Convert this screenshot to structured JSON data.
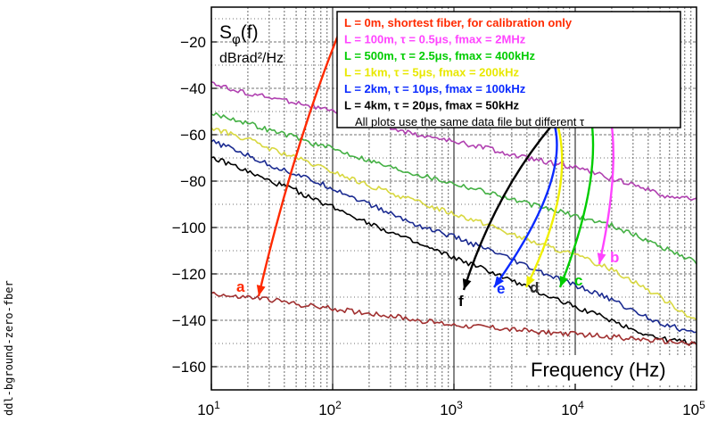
{
  "side_label": "ddl-bground-zero-fber",
  "chart_data": {
    "type": "line",
    "ylabel_main": "S",
    "ylabel_sub": "φ",
    "ylabel_tail": "(f)",
    "ylabel_unit": "dBrad²/Hz",
    "xlabel": "Frequency (Hz)",
    "x_log": true,
    "xlim": [
      10,
      100000
    ],
    "ylim": [
      -170,
      -5
    ],
    "x_ticks": [
      {
        "value": 10,
        "base": "10",
        "exp": "1"
      },
      {
        "value": 100,
        "base": "10",
        "exp": "2"
      },
      {
        "value": 1000,
        "base": "10",
        "exp": "3"
      },
      {
        "value": 10000,
        "base": "10",
        "exp": "4"
      },
      {
        "value": 100000,
        "base": "10",
        "exp": "5"
      }
    ],
    "y_ticks": [
      {
        "value": -20,
        "label": "−20"
      },
      {
        "value": -40,
        "label": "−40"
      },
      {
        "value": -60,
        "label": "−60"
      },
      {
        "value": -80,
        "label": "−80"
      },
      {
        "value": -100,
        "label": "−100"
      },
      {
        "value": -120,
        "label": "−120"
      },
      {
        "value": -140,
        "label": "−140"
      },
      {
        "value": -160,
        "label": "−160"
      }
    ],
    "grid": true,
    "legend": [
      {
        "id": "a",
        "color": "#ff2a00",
        "text": "L = 0m, shortest fiber, for calibration only"
      },
      {
        "id": "b",
        "color": "#ff44ff",
        "text": "L = 100m, τ = 0.5μs, fmax = 2MHz"
      },
      {
        "id": "c",
        "color": "#00cc00",
        "text": "L = 500m, τ = 2.5μs, fmax = 400kHz"
      },
      {
        "id": "d",
        "color": "#e8e800",
        "text": "L = 1km, τ = 5μs, fmax = 200kHz"
      },
      {
        "id": "e",
        "color": "#0a2aff",
        "text": "L = 2km, τ = 10μs, fmax = 100kHz"
      },
      {
        "id": "f",
        "color": "#000000",
        "text": "L = 4km, τ = 20μs, fmax = 50kHz"
      }
    ],
    "legend_note": "All plots use the same data file but different τ",
    "curve_labels": [
      {
        "id": "a",
        "text": "a",
        "color": "#ff2a00"
      },
      {
        "id": "b",
        "text": "b",
        "color": "#ff44ff"
      },
      {
        "id": "c",
        "text": "c",
        "color": "#00cc00"
      },
      {
        "id": "d",
        "text": "d",
        "color": "#333333"
      },
      {
        "id": "e",
        "text": "e",
        "color": "#0a2aff"
      },
      {
        "id": "f",
        "text": "f",
        "color": "#000000"
      }
    ],
    "series": [
      {
        "id": "b",
        "color": "#b040b0",
        "points": [
          [
            10,
            -37
          ],
          [
            15,
            -41
          ],
          [
            20,
            -42
          ],
          [
            30,
            -44
          ],
          [
            50,
            -46
          ],
          [
            70,
            -48
          ],
          [
            100,
            -50
          ],
          [
            200,
            -54
          ],
          [
            300,
            -57
          ],
          [
            500,
            -60
          ],
          [
            1000,
            -63
          ],
          [
            2000,
            -66
          ],
          [
            3000,
            -69
          ],
          [
            5000,
            -71
          ],
          [
            10000,
            -74
          ],
          [
            20000,
            -79
          ],
          [
            30000,
            -81
          ],
          [
            50000,
            -86
          ],
          [
            100000,
            -88
          ]
        ]
      },
      {
        "id": "c",
        "color": "#44b044",
        "points": [
          [
            10,
            -51
          ],
          [
            15,
            -53
          ],
          [
            20,
            -55
          ],
          [
            30,
            -58
          ],
          [
            50,
            -61
          ],
          [
            70,
            -64
          ],
          [
            100,
            -66
          ],
          [
            200,
            -71
          ],
          [
            300,
            -74
          ],
          [
            500,
            -77
          ],
          [
            1000,
            -81
          ],
          [
            2000,
            -85
          ],
          [
            3000,
            -88
          ],
          [
            5000,
            -91
          ],
          [
            10000,
            -95
          ],
          [
            20000,
            -99
          ],
          [
            30000,
            -103
          ],
          [
            50000,
            -108
          ],
          [
            100000,
            -115
          ]
        ]
      },
      {
        "id": "d",
        "color": "#d8d840",
        "points": [
          [
            10,
            -57
          ],
          [
            15,
            -60
          ],
          [
            20,
            -62
          ],
          [
            30,
            -66
          ],
          [
            50,
            -70
          ],
          [
            70,
            -73
          ],
          [
            100,
            -76
          ],
          [
            200,
            -82
          ],
          [
            300,
            -85
          ],
          [
            500,
            -89
          ],
          [
            1000,
            -94
          ],
          [
            2000,
            -99
          ],
          [
            3000,
            -103
          ],
          [
            5000,
            -107
          ],
          [
            10000,
            -112
          ],
          [
            20000,
            -118
          ],
          [
            30000,
            -123
          ],
          [
            50000,
            -130
          ],
          [
            100000,
            -140
          ]
        ]
      },
      {
        "id": "e",
        "color": "#1a2a90",
        "points": [
          [
            10,
            -63
          ],
          [
            15,
            -66
          ],
          [
            20,
            -69
          ],
          [
            30,
            -73
          ],
          [
            50,
            -77
          ],
          [
            70,
            -80
          ],
          [
            100,
            -83
          ],
          [
            200,
            -90
          ],
          [
            300,
            -94
          ],
          [
            500,
            -99
          ],
          [
            1000,
            -104
          ],
          [
            2000,
            -110
          ],
          [
            3000,
            -114
          ],
          [
            5000,
            -119
          ],
          [
            10000,
            -125
          ],
          [
            20000,
            -131
          ],
          [
            30000,
            -136
          ],
          [
            50000,
            -141
          ],
          [
            100000,
            -146
          ]
        ]
      },
      {
        "id": "f",
        "color": "#000000",
        "points": [
          [
            10,
            -70
          ],
          [
            15,
            -73
          ],
          [
            20,
            -76
          ],
          [
            30,
            -80
          ],
          [
            50,
            -84
          ],
          [
            70,
            -88
          ],
          [
            100,
            -91
          ],
          [
            200,
            -98
          ],
          [
            300,
            -102
          ],
          [
            500,
            -107
          ],
          [
            1000,
            -113
          ],
          [
            2000,
            -119
          ],
          [
            3000,
            -123
          ],
          [
            5000,
            -128
          ],
          [
            10000,
            -134
          ],
          [
            20000,
            -140
          ],
          [
            30000,
            -144
          ],
          [
            50000,
            -148
          ],
          [
            100000,
            -150
          ]
        ]
      },
      {
        "id": "a",
        "color": "#a03030",
        "points": [
          [
            10,
            -128
          ],
          [
            15,
            -130
          ],
          [
            20,
            -130
          ],
          [
            30,
            -131
          ],
          [
            50,
            -133
          ],
          [
            70,
            -134
          ],
          [
            100,
            -135
          ],
          [
            200,
            -137
          ],
          [
            300,
            -138
          ],
          [
            500,
            -140
          ],
          [
            1000,
            -142
          ],
          [
            2000,
            -143
          ],
          [
            3000,
            -144
          ],
          [
            5000,
            -145
          ],
          [
            10000,
            -146
          ],
          [
            20000,
            -147
          ],
          [
            30000,
            -148
          ],
          [
            50000,
            -149
          ],
          [
            100000,
            -150
          ]
        ]
      }
    ]
  }
}
